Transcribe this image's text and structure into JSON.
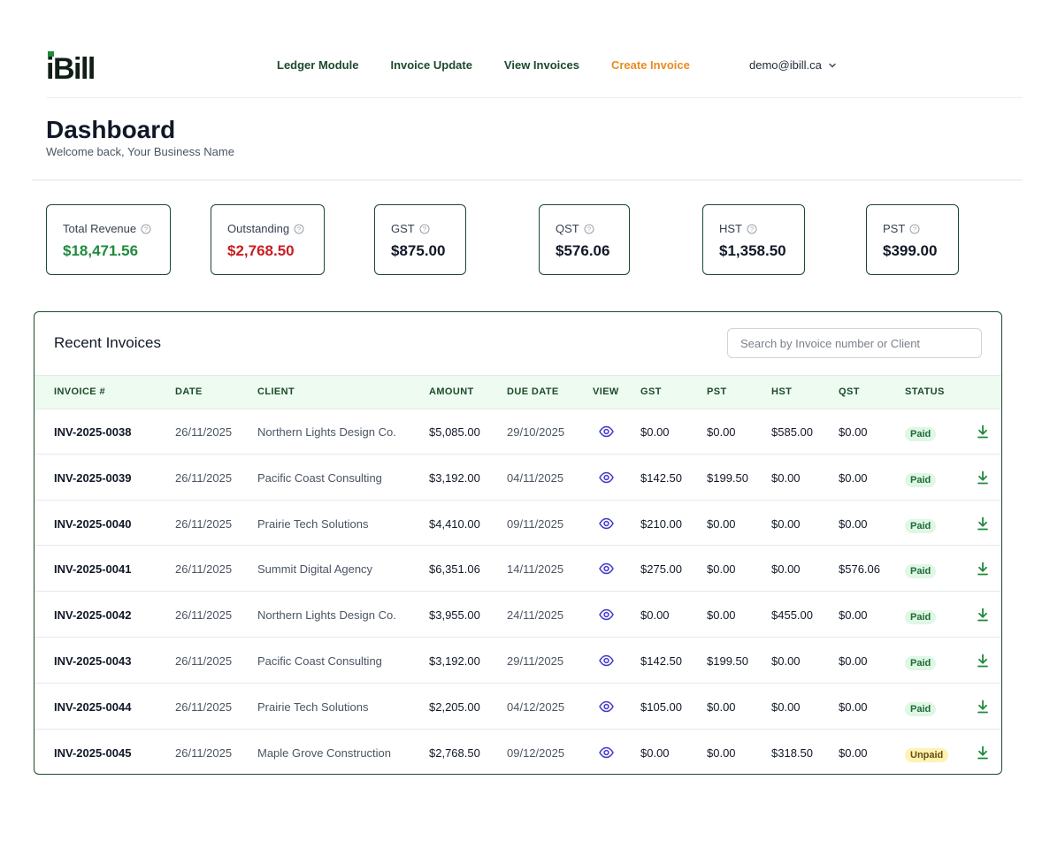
{
  "brand": {
    "logo_text": "iBill",
    "accent": "#1c4a2c",
    "green": "#1f8a3d"
  },
  "nav": {
    "items": [
      {
        "label": "Ledger Module",
        "active": false
      },
      {
        "label": "Invoice Update",
        "active": false
      },
      {
        "label": "View Invoices",
        "active": false
      },
      {
        "label": "Create Invoice",
        "active": true
      }
    ],
    "user_email": "demo@ibill.ca"
  },
  "page": {
    "title": "Dashboard",
    "subtitle": "Welcome back, Your Business Name"
  },
  "stats": [
    {
      "label": "Total Revenue",
      "value": "$18,471.56"
    },
    {
      "label": "Outstanding",
      "value": "$2,768.50"
    },
    {
      "label": "GST",
      "value": "$875.00"
    },
    {
      "label": "QST",
      "value": "$576.06"
    },
    {
      "label": "HST",
      "value": "$1,358.50"
    },
    {
      "label": "PST",
      "value": "$399.00"
    }
  ],
  "invoices": {
    "title": "Recent Invoices",
    "search_placeholder": "Search by Invoice number or Client",
    "columns": [
      "INVOICE #",
      "DATE",
      "CLIENT",
      "AMOUNT",
      "DUE DATE",
      "VIEW",
      "GST",
      "PST",
      "HST",
      "QST",
      "STATUS"
    ],
    "rows": [
      {
        "invoice": "INV-2025-0038",
        "date": "26/11/2025",
        "client": "Northern Lights Design Co.",
        "amount": "$5,085.00",
        "due": "29/10/2025",
        "gst": "$0.00",
        "pst": "$0.00",
        "hst": "$585.00",
        "qst": "$0.00",
        "status": "Paid"
      },
      {
        "invoice": "INV-2025-0039",
        "date": "26/11/2025",
        "client": "Pacific Coast Consulting",
        "amount": "$3,192.00",
        "due": "04/11/2025",
        "gst": "$142.50",
        "pst": "$199.50",
        "hst": "$0.00",
        "qst": "$0.00",
        "status": "Paid"
      },
      {
        "invoice": "INV-2025-0040",
        "date": "26/11/2025",
        "client": "Prairie Tech Solutions",
        "amount": "$4,410.00",
        "due": "09/11/2025",
        "gst": "$210.00",
        "pst": "$0.00",
        "hst": "$0.00",
        "qst": "$0.00",
        "status": "Paid"
      },
      {
        "invoice": "INV-2025-0041",
        "date": "26/11/2025",
        "client": "Summit Digital Agency",
        "amount": "$6,351.06",
        "due": "14/11/2025",
        "gst": "$275.00",
        "pst": "$0.00",
        "hst": "$0.00",
        "qst": "$576.06",
        "status": "Paid"
      },
      {
        "invoice": "INV-2025-0042",
        "date": "26/11/2025",
        "client": "Northern Lights Design Co.",
        "amount": "$3,955.00",
        "due": "24/11/2025",
        "gst": "$0.00",
        "pst": "$0.00",
        "hst": "$455.00",
        "qst": "$0.00",
        "status": "Paid"
      },
      {
        "invoice": "INV-2025-0043",
        "date": "26/11/2025",
        "client": "Pacific Coast Consulting",
        "amount": "$3,192.00",
        "due": "29/11/2025",
        "gst": "$142.50",
        "pst": "$199.50",
        "hst": "$0.00",
        "qst": "$0.00",
        "status": "Paid"
      },
      {
        "invoice": "INV-2025-0044",
        "date": "26/11/2025",
        "client": "Prairie Tech Solutions",
        "amount": "$2,205.00",
        "due": "04/12/2025",
        "gst": "$105.00",
        "pst": "$0.00",
        "hst": "$0.00",
        "qst": "$0.00",
        "status": "Paid"
      },
      {
        "invoice": "INV-2025-0045",
        "date": "26/11/2025",
        "client": "Maple Grove Construction",
        "amount": "$2,768.50",
        "due": "09/12/2025",
        "gst": "$0.00",
        "pst": "$0.00",
        "hst": "$318.50",
        "qst": "$0.00",
        "status": "Unpaid"
      }
    ]
  }
}
